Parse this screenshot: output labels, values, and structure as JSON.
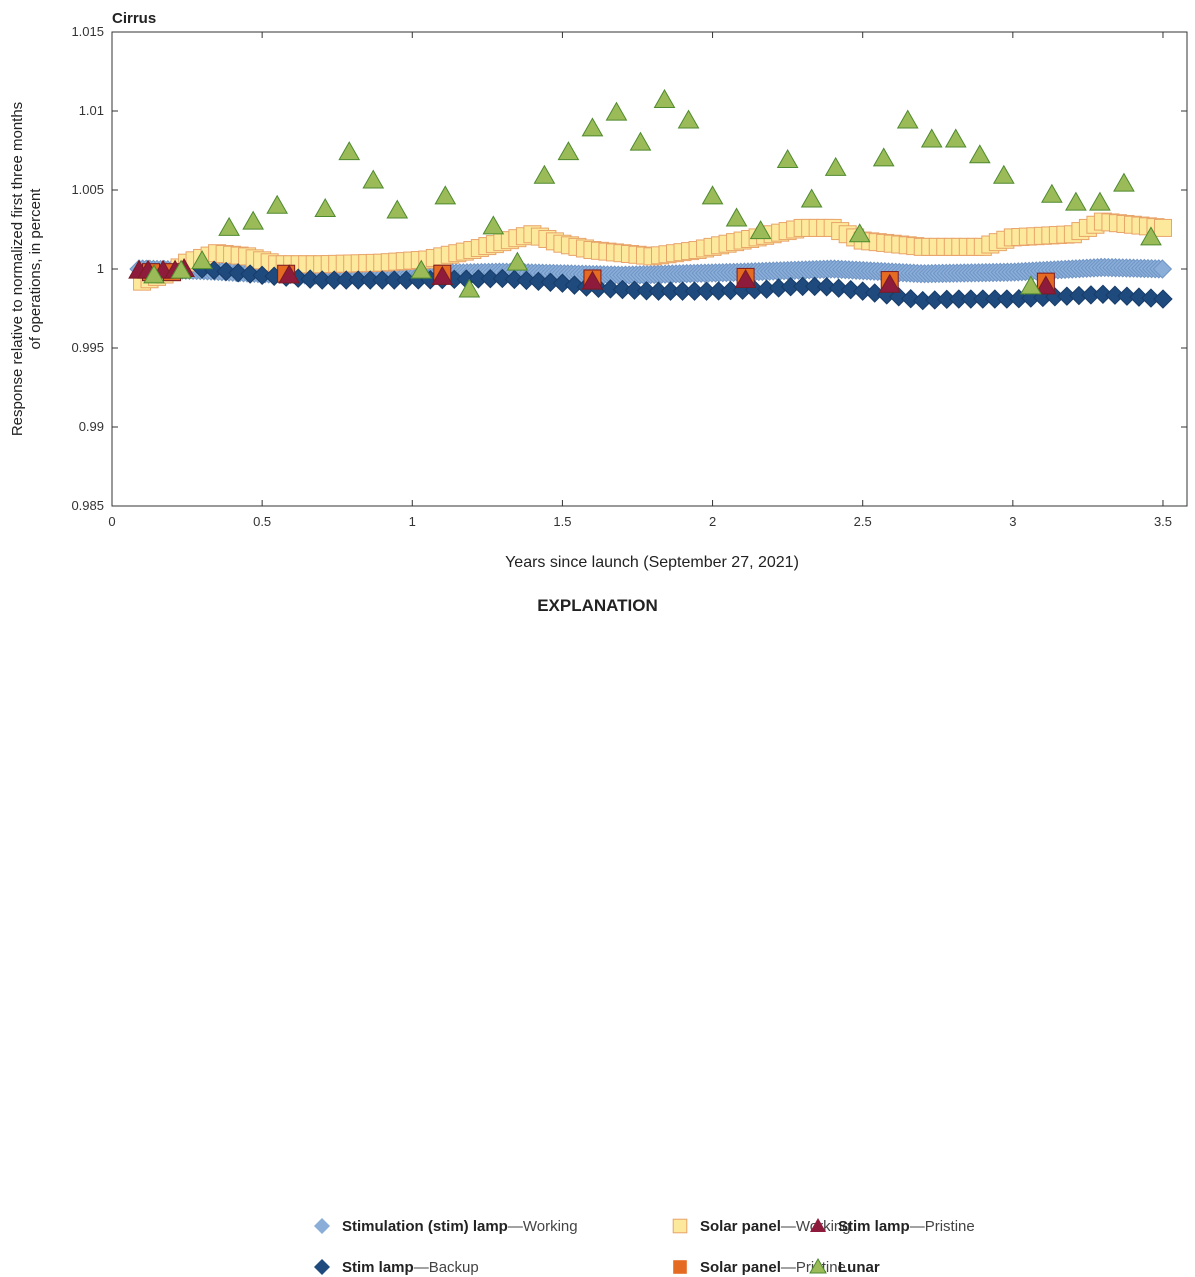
{
  "chart_data": {
    "type": "scatter",
    "title": "Cirrus",
    "xlabel": "Years since launch (September 27, 2021)",
    "ylabel": "Response relative to normalized first three months of operations, in percent",
    "xlim": [
      0,
      3.58
    ],
    "ylim": [
      0.985,
      1.015
    ],
    "xticks": [
      "0",
      "0.5",
      "1",
      "1.5",
      "2",
      "2.5",
      "3",
      "3.5"
    ],
    "yticks": [
      "0.985",
      "0.99",
      "0.995",
      "1",
      "1.005",
      "1.01",
      "1.015"
    ],
    "grid": false,
    "legend_title": "EXPLANATION",
    "legend_position": "bottom",
    "series": [
      {
        "name": "Stimulation (stim) lamp",
        "qualifier": "Working",
        "marker": "diamond",
        "color": "#8aaed8",
        "dense": true,
        "points": [
          [
            0.09,
            1.0
          ],
          [
            0.3,
            0.9999
          ],
          [
            0.5,
            0.9997
          ],
          [
            0.7,
            0.9996
          ],
          [
            1.0,
            0.9997
          ],
          [
            1.3,
            0.9998
          ],
          [
            1.5,
            0.9997
          ],
          [
            1.7,
            0.9996
          ],
          [
            2.1,
            0.9998
          ],
          [
            2.4,
            1.0
          ],
          [
            2.7,
            0.9997
          ],
          [
            3.0,
            0.9998
          ],
          [
            3.3,
            1.0001
          ],
          [
            3.5,
            1.0
          ]
        ]
      },
      {
        "name": "Solar panel",
        "qualifier": "Working",
        "marker": "square",
        "color": "#fde99b",
        "stroke": "#e8a46a",
        "dense": true,
        "points": [
          [
            0.1,
            0.9992
          ],
          [
            0.2,
            0.9998
          ],
          [
            0.25,
            1.0004
          ],
          [
            0.35,
            1.001
          ],
          [
            0.45,
            1.0008
          ],
          [
            0.55,
            1.0003
          ],
          [
            0.7,
            1.0003
          ],
          [
            0.9,
            1.0004
          ],
          [
            1.05,
            1.0006
          ],
          [
            1.2,
            1.0012
          ],
          [
            1.4,
            1.0022
          ],
          [
            1.5,
            1.0016
          ],
          [
            1.6,
            1.0012
          ],
          [
            1.8,
            1.0008
          ],
          [
            1.95,
            1.0012
          ],
          [
            2.1,
            1.0018
          ],
          [
            2.3,
            1.0026
          ],
          [
            2.4,
            1.0026
          ],
          [
            2.5,
            1.0018
          ],
          [
            2.7,
            1.0014
          ],
          [
            2.9,
            1.0014
          ],
          [
            3.0,
            1.002
          ],
          [
            3.2,
            1.0022
          ],
          [
            3.3,
            1.003
          ],
          [
            3.5,
            1.0026
          ]
        ]
      },
      {
        "name": "Stim lamp",
        "qualifier": "Backup",
        "marker": "diamond",
        "color": "#1f4a7e",
        "dense": true,
        "points": [
          [
            0.3,
            1.0
          ],
          [
            0.5,
            0.9996
          ],
          [
            0.7,
            0.9993
          ],
          [
            1.0,
            0.9993
          ],
          [
            1.3,
            0.9994
          ],
          [
            1.5,
            0.9991
          ],
          [
            1.6,
            0.9988
          ],
          [
            1.8,
            0.9986
          ],
          [
            2.0,
            0.9986
          ],
          [
            2.17,
            0.9987
          ],
          [
            2.27,
            0.9989
          ],
          [
            2.37,
            0.9989
          ],
          [
            2.5,
            0.9986
          ],
          [
            2.6,
            0.9983
          ],
          [
            2.7,
            0.998
          ],
          [
            2.8,
            0.9981
          ],
          [
            3.0,
            0.9981
          ],
          [
            3.2,
            0.9983
          ],
          [
            3.3,
            0.9984
          ],
          [
            3.5,
            0.9981
          ]
        ]
      },
      {
        "name": "Solar panel",
        "qualifier": "Pristine",
        "marker": "square",
        "color": "#e56b22",
        "dense": false,
        "points": [
          [
            0.13,
            0.9998
          ],
          [
            0.2,
            0.9998
          ],
          [
            0.58,
            0.9997
          ],
          [
            1.1,
            0.9997
          ],
          [
            1.6,
            0.9994
          ],
          [
            2.11,
            0.9995
          ],
          [
            2.59,
            0.9993
          ],
          [
            3.11,
            0.9992
          ]
        ]
      },
      {
        "name": "Stim lamp",
        "qualifier": "Pristine",
        "marker": "triangle",
        "color": "#8e1a3c",
        "dense": false,
        "points": [
          [
            0.09,
            0.9999
          ],
          [
            0.12,
            0.9999
          ],
          [
            0.17,
            0.9999
          ],
          [
            0.21,
            0.9999
          ],
          [
            0.24,
            1.0
          ],
          [
            0.59,
            0.9996
          ],
          [
            1.1,
            0.9995
          ],
          [
            1.6,
            0.9992
          ],
          [
            2.11,
            0.9993
          ],
          [
            2.59,
            0.999
          ],
          [
            3.11,
            0.9989
          ]
        ]
      },
      {
        "name": "Lunar",
        "qualifier": "",
        "marker": "triangle",
        "color": "#9bbb59",
        "stroke": "#4e8a2e",
        "dense": false,
        "points": [
          [
            0.14,
            0.9996
          ],
          [
            0.23,
            0.9999
          ],
          [
            0.3,
            1.0005
          ],
          [
            0.39,
            1.0026
          ],
          [
            0.47,
            1.003
          ],
          [
            0.55,
            1.004
          ],
          [
            0.71,
            1.0038
          ],
          [
            0.79,
            1.0074
          ],
          [
            0.87,
            1.0056
          ],
          [
            0.95,
            1.0037
          ],
          [
            1.03,
            0.9999
          ],
          [
            1.11,
            1.0046
          ],
          [
            1.19,
            0.9987
          ],
          [
            1.27,
            1.0027
          ],
          [
            1.35,
            1.0004
          ],
          [
            1.44,
            1.0059
          ],
          [
            1.52,
            1.0074
          ],
          [
            1.6,
            1.0089
          ],
          [
            1.68,
            1.0099
          ],
          [
            1.76,
            1.008
          ],
          [
            1.84,
            1.0107
          ],
          [
            1.92,
            1.0094
          ],
          [
            2.0,
            1.0046
          ],
          [
            2.08,
            1.0032
          ],
          [
            2.16,
            1.0024
          ],
          [
            2.25,
            1.0069
          ],
          [
            2.33,
            1.0044
          ],
          [
            2.41,
            1.0064
          ],
          [
            2.49,
            1.0022
          ],
          [
            2.57,
            1.007
          ],
          [
            2.65,
            1.0094
          ],
          [
            2.73,
            1.0082
          ],
          [
            2.81,
            1.0082
          ],
          [
            2.89,
            1.0072
          ],
          [
            2.97,
            1.0059
          ],
          [
            3.06,
            0.9989
          ],
          [
            3.13,
            1.0047
          ],
          [
            3.21,
            1.0042
          ],
          [
            3.29,
            1.0042
          ],
          [
            3.37,
            1.0054
          ],
          [
            3.46,
            1.002
          ]
        ]
      }
    ]
  }
}
